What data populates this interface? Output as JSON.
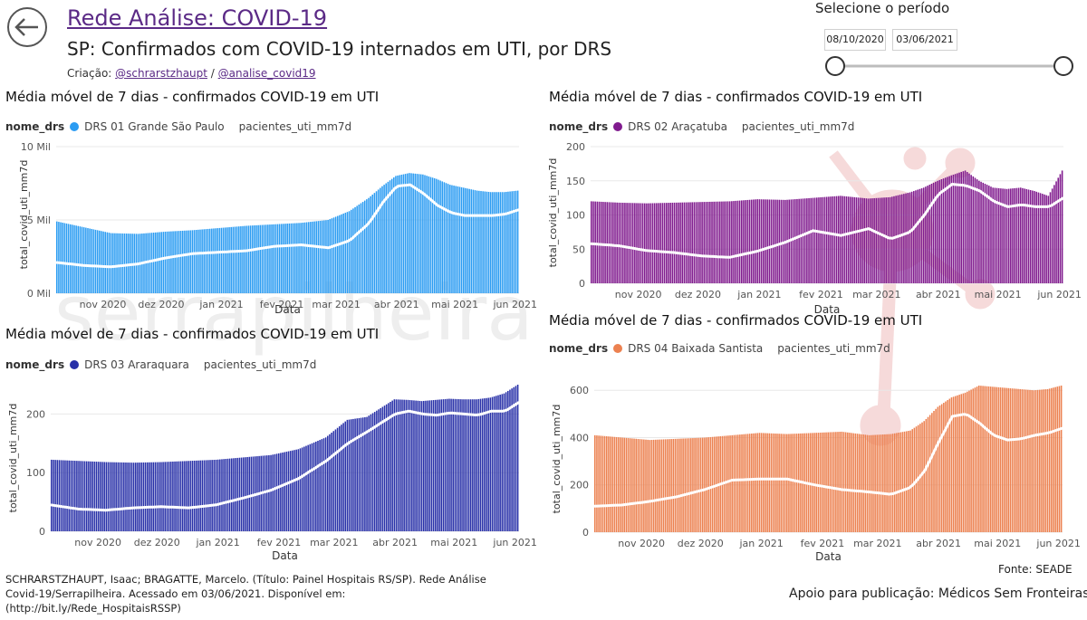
{
  "header": {
    "title": "Rede Análise: COVID-19",
    "subtitle": "SP: Confirmados com COVID-19 internados em UTI, por DRS",
    "credits_prefix": "Criação: ",
    "credit_link_1": "@schrarstzhaupt",
    "credits_sep": " / ",
    "credit_link_2": "@analise_covid19"
  },
  "period_selector": {
    "label": "Selecione o período",
    "start_date": "08/10/2020",
    "end_date": "03/06/2021"
  },
  "footer": {
    "citation": "SCHRARSTZHAUPT, Isaac; BRAGATTE, Marcelo. (Título: Painel Hospitais RS/SP). Rede Análise Covid-19/Serrapilheira. Acessado em 03/06/2021. Disponível em: (http://bit.ly/Rede_HospitaisRSSP)",
    "source": "Fonte: SEADE",
    "support": "Apoio para publicação: Médicos Sem Fronteiras"
  },
  "watermark": {
    "text": "serrapilheira"
  },
  "charts": [
    {
      "title": "Média móvel de 7 dias - confirmados COVID-19 em UTI",
      "legend_title": "nome_drs",
      "series_name": "DRS 01 Grande São Paulo",
      "line_name": "pacientes_uti_mm7d",
      "ylabel": "total_covid_uti_mm7d",
      "xlabel": "Data",
      "bar_color": "#2b9cf2",
      "yticks": [
        "10 Mil",
        "5 Mil",
        "0 Mil"
      ],
      "xticks": [
        "nov 2020",
        "dez 2020",
        "jan 2021",
        "fev 2021",
        "mar 2021",
        "abr 2021",
        "mai 2021",
        "jun 2021"
      ]
    },
    {
      "title": "Média móvel de 7 dias - confirmados COVID-19 em UTI",
      "legend_title": "nome_drs",
      "series_name": "DRS 02 Araçatuba",
      "line_name": "pacientes_uti_mm7d",
      "ylabel": "total_covid_uti_mm7d",
      "xlabel": "Data",
      "bar_color": "#801b8e",
      "yticks": [
        "200",
        "150",
        "100",
        "50",
        "0"
      ],
      "xticks": [
        "nov 2020",
        "dez 2020",
        "jan 2021",
        "fev 2021",
        "mar 2021",
        "abr 2021",
        "mai 2021",
        "jun 2021"
      ]
    },
    {
      "title": "Média móvel de 7 dias - confirmados COVID-19 em UTI",
      "legend_title": "nome_drs",
      "series_name": "DRS 03 Araraquara",
      "line_name": "pacientes_uti_mm7d",
      "ylabel": "total_covid_uti_mm7d",
      "xlabel": "Data",
      "bar_color": "#2830a8",
      "yticks": [
        "200",
        "100",
        "0"
      ],
      "xticks": [
        "nov 2020",
        "dez 2020",
        "jan 2021",
        "fev 2021",
        "mar 2021",
        "abr 2021",
        "mai 2021",
        "jun 2021"
      ]
    },
    {
      "title": "Média móvel de 7 dias - confirmados COVID-19 em UTI",
      "legend_title": "nome_drs",
      "series_name": "DRS 04 Baixada Santista",
      "line_name": "pacientes_uti_mm7d",
      "ylabel": "total_covid_uti_mm7d",
      "xlabel": "Data",
      "bar_color": "#ec8150",
      "yticks": [
        "600",
        "400",
        "200",
        "0"
      ],
      "xticks": [
        "nov 2020",
        "dez 2020",
        "jan 2021",
        "fev 2021",
        "mar 2021",
        "abr 2021",
        "mai 2021",
        "jun 2021"
      ]
    }
  ],
  "chart_data": [
    {
      "type": "bar",
      "series": [
        {
          "name": "DRS 01 Grande São Paulo",
          "kind": "bar",
          "color": "#2b9cf2",
          "x": [
            "2020-10-08",
            "2020-10-22",
            "2020-11-05",
            "2020-11-19",
            "2020-12-03",
            "2020-12-17",
            "2020-12-31",
            "2021-01-14",
            "2021-01-28",
            "2021-02-11",
            "2021-02-25",
            "2021-03-08",
            "2021-03-18",
            "2021-03-25",
            "2021-04-01",
            "2021-04-08",
            "2021-04-15",
            "2021-04-22",
            "2021-04-29",
            "2021-05-06",
            "2021-05-13",
            "2021-05-20",
            "2021-05-27",
            "2021-06-03"
          ],
          "values": [
            4900,
            4500,
            4100,
            4050,
            4200,
            4300,
            4450,
            4600,
            4700,
            4800,
            5000,
            5600,
            6500,
            7300,
            8000,
            8200,
            8100,
            7800,
            7400,
            7200,
            7000,
            6900,
            6900,
            7000
          ]
        },
        {
          "name": "pacientes_uti_mm7d",
          "kind": "line",
          "color": "#ffffff",
          "x": [
            "2020-10-08",
            "2020-10-22",
            "2020-11-05",
            "2020-11-19",
            "2020-12-03",
            "2020-12-17",
            "2020-12-31",
            "2021-01-14",
            "2021-01-28",
            "2021-02-11",
            "2021-02-25",
            "2021-03-08",
            "2021-03-18",
            "2021-03-25",
            "2021-04-01",
            "2021-04-08",
            "2021-04-15",
            "2021-04-22",
            "2021-04-29",
            "2021-05-06",
            "2021-05-13",
            "2021-05-20",
            "2021-05-27",
            "2021-06-03"
          ],
          "values": [
            2100,
            1900,
            1800,
            2000,
            2400,
            2700,
            2800,
            2900,
            3200,
            3300,
            3100,
            3600,
            4800,
            6200,
            7300,
            7400,
            6800,
            6000,
            5500,
            5300,
            5300,
            5300,
            5400,
            5700
          ]
        }
      ],
      "ylim": [
        0,
        10000
      ],
      "grid": true
    },
    {
      "type": "bar",
      "series": [
        {
          "name": "DRS 02 Araçatuba",
          "kind": "bar",
          "color": "#801b8e",
          "x": [
            "2020-10-08",
            "2020-10-22",
            "2020-11-05",
            "2020-11-19",
            "2020-12-03",
            "2020-12-17",
            "2020-12-31",
            "2021-01-14",
            "2021-01-28",
            "2021-02-11",
            "2021-02-25",
            "2021-03-08",
            "2021-03-18",
            "2021-03-25",
            "2021-04-01",
            "2021-04-08",
            "2021-04-15",
            "2021-04-22",
            "2021-04-29",
            "2021-05-06",
            "2021-05-13",
            "2021-05-20",
            "2021-05-27",
            "2021-06-03"
          ],
          "values": [
            120,
            118,
            117,
            118,
            119,
            120,
            123,
            122,
            125,
            128,
            124,
            126,
            133,
            140,
            150,
            158,
            165,
            150,
            140,
            138,
            140,
            135,
            128,
            165
          ]
        },
        {
          "name": "pacientes_uti_mm7d",
          "kind": "line",
          "color": "#ffffff",
          "x": [
            "2020-10-08",
            "2020-10-22",
            "2020-11-05",
            "2020-11-19",
            "2020-12-03",
            "2020-12-17",
            "2020-12-31",
            "2021-01-14",
            "2021-01-28",
            "2021-02-11",
            "2021-02-25",
            "2021-03-08",
            "2021-03-18",
            "2021-03-25",
            "2021-04-01",
            "2021-04-08",
            "2021-04-15",
            "2021-04-22",
            "2021-04-29",
            "2021-05-06",
            "2021-05-13",
            "2021-05-20",
            "2021-05-27",
            "2021-06-03"
          ],
          "values": [
            58,
            55,
            48,
            45,
            40,
            38,
            47,
            60,
            77,
            70,
            80,
            65,
            75,
            100,
            130,
            145,
            143,
            135,
            120,
            112,
            115,
            112,
            112,
            125
          ]
        }
      ],
      "ylim": [
        0,
        200
      ],
      "grid": true
    },
    {
      "type": "bar",
      "series": [
        {
          "name": "DRS 03 Araraquara",
          "kind": "bar",
          "color": "#2830a8",
          "x": [
            "2020-10-08",
            "2020-10-22",
            "2020-11-05",
            "2020-11-19",
            "2020-12-03",
            "2020-12-17",
            "2020-12-31",
            "2021-01-14",
            "2021-01-28",
            "2021-02-11",
            "2021-02-25",
            "2021-03-08",
            "2021-03-18",
            "2021-03-25",
            "2021-04-01",
            "2021-04-08",
            "2021-04-15",
            "2021-04-22",
            "2021-04-29",
            "2021-05-06",
            "2021-05-13",
            "2021-05-20",
            "2021-05-27",
            "2021-06-03"
          ],
          "values": [
            122,
            120,
            118,
            117,
            118,
            120,
            122,
            126,
            130,
            140,
            160,
            190,
            195,
            210,
            225,
            224,
            222,
            224,
            226,
            225,
            225,
            228,
            235,
            250
          ]
        },
        {
          "name": "pacientes_uti_mm7d",
          "kind": "line",
          "color": "#ffffff",
          "x": [
            "2020-10-08",
            "2020-10-22",
            "2020-11-05",
            "2020-11-19",
            "2020-12-03",
            "2020-12-17",
            "2020-12-31",
            "2021-01-14",
            "2021-01-28",
            "2021-02-11",
            "2021-02-25",
            "2021-03-08",
            "2021-03-18",
            "2021-03-25",
            "2021-04-01",
            "2021-04-08",
            "2021-04-15",
            "2021-04-22",
            "2021-04-29",
            "2021-05-06",
            "2021-05-13",
            "2021-05-20",
            "2021-05-27",
            "2021-06-03"
          ],
          "values": [
            45,
            38,
            36,
            40,
            42,
            40,
            45,
            57,
            70,
            90,
            120,
            150,
            170,
            185,
            200,
            205,
            200,
            198,
            202,
            200,
            198,
            205,
            205,
            220
          ]
        }
      ],
      "ylim": [
        0,
        250
      ],
      "grid": true
    },
    {
      "type": "bar",
      "series": [
        {
          "name": "DRS 04 Baixada Santista",
          "kind": "bar",
          "color": "#ec8150",
          "x": [
            "2020-10-08",
            "2020-10-22",
            "2020-11-05",
            "2020-11-19",
            "2020-12-03",
            "2020-12-17",
            "2020-12-31",
            "2021-01-14",
            "2021-01-28",
            "2021-02-11",
            "2021-02-25",
            "2021-03-08",
            "2021-03-18",
            "2021-03-25",
            "2021-04-01",
            "2021-04-08",
            "2021-04-15",
            "2021-04-22",
            "2021-04-29",
            "2021-05-06",
            "2021-05-13",
            "2021-05-20",
            "2021-05-27",
            "2021-06-03"
          ],
          "values": [
            410,
            400,
            390,
            395,
            400,
            410,
            420,
            415,
            420,
            425,
            410,
            415,
            430,
            470,
            530,
            570,
            590,
            620,
            615,
            610,
            605,
            600,
            605,
            620
          ]
        },
        {
          "name": "pacientes_uti_mm7d",
          "kind": "line",
          "color": "#ffffff",
          "x": [
            "2020-10-08",
            "2020-10-22",
            "2020-11-05",
            "2020-11-19",
            "2020-12-03",
            "2020-12-17",
            "2020-12-31",
            "2021-01-14",
            "2021-01-28",
            "2021-02-11",
            "2021-02-25",
            "2021-03-08",
            "2021-03-18",
            "2021-03-25",
            "2021-04-01",
            "2021-04-08",
            "2021-04-15",
            "2021-04-22",
            "2021-04-29",
            "2021-05-06",
            "2021-05-13",
            "2021-05-20",
            "2021-05-27",
            "2021-06-03"
          ],
          "values": [
            110,
            115,
            130,
            150,
            180,
            220,
            225,
            225,
            200,
            180,
            170,
            160,
            190,
            260,
            380,
            490,
            500,
            460,
            410,
            390,
            395,
            410,
            420,
            440
          ]
        }
      ],
      "ylim": [
        0,
        620
      ],
      "grid": true
    }
  ]
}
